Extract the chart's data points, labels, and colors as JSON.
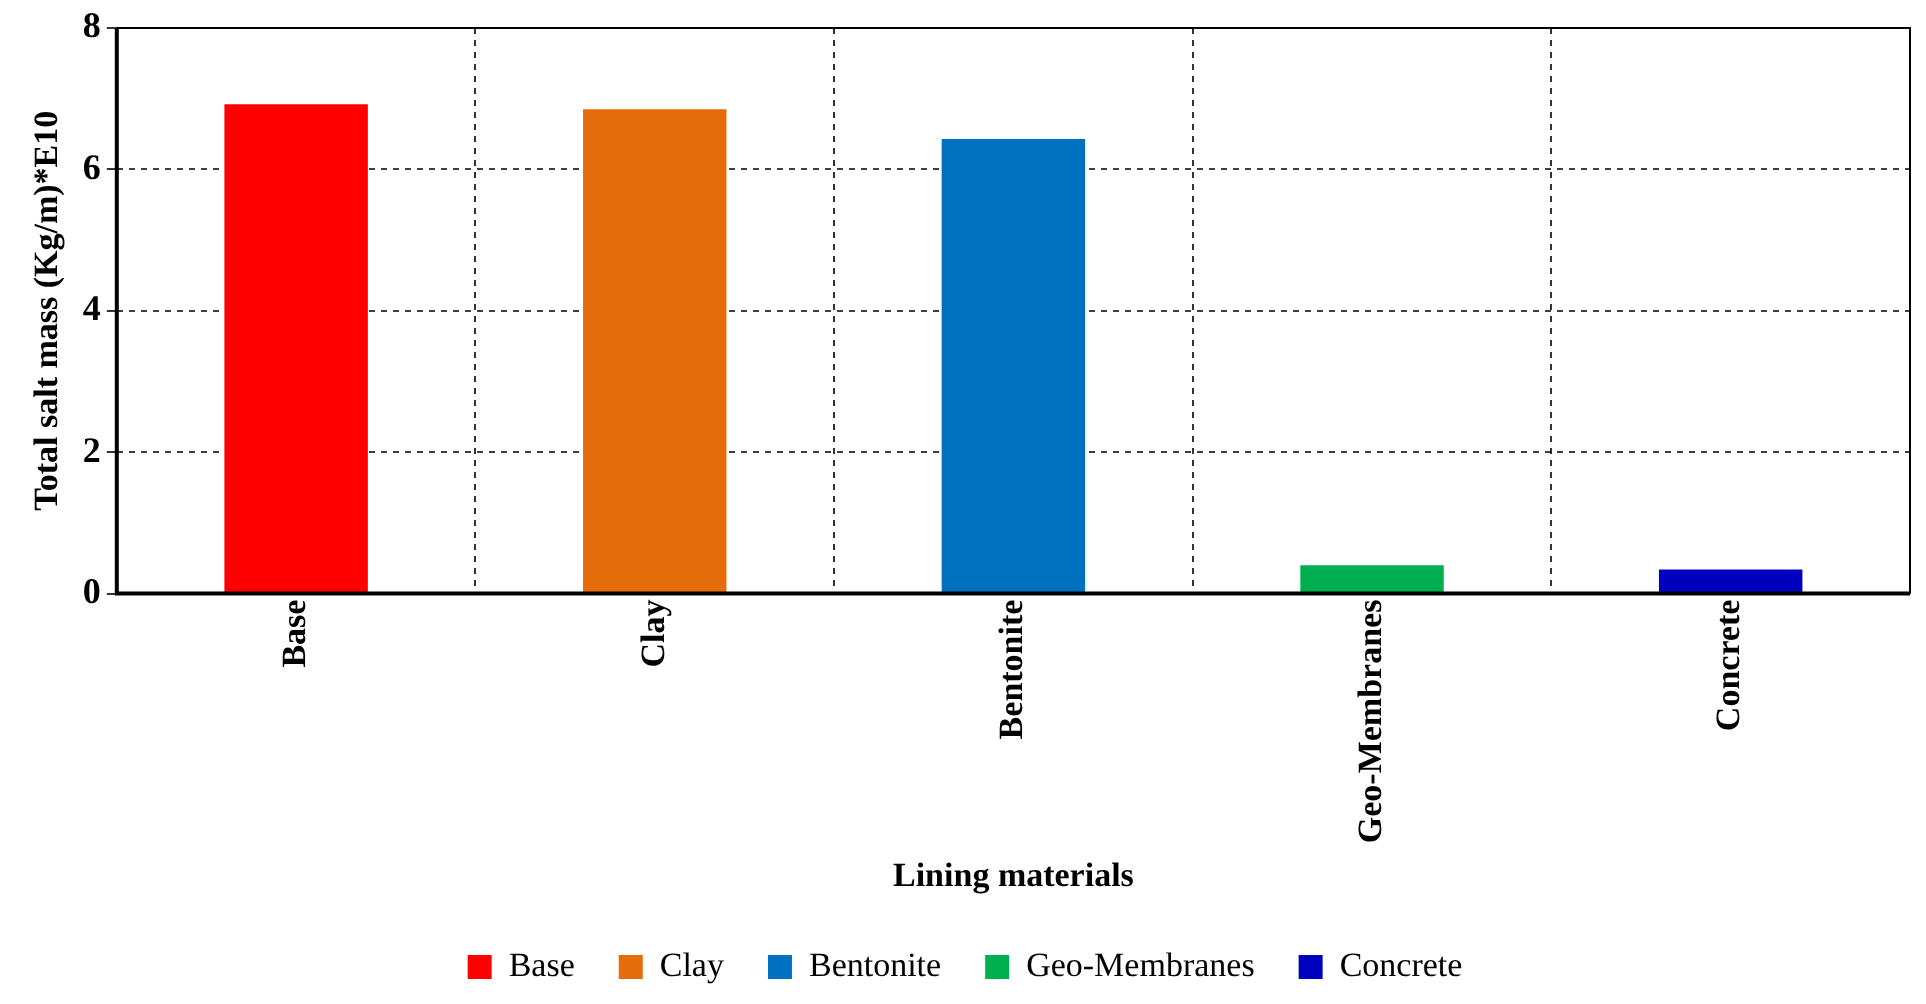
{
  "chart_data": {
    "type": "bar",
    "xlabel": "Lining materials",
    "ylabel": "Total salt mass (Kg/m)*E10",
    "categories": [
      "Base",
      "Clay",
      "Bentonite",
      "Geo-Membranes",
      "Concrete"
    ],
    "series": [
      {
        "name": "Base",
        "color": "#ff0000",
        "values": [
          6.92,
          null,
          null,
          null,
          null
        ]
      },
      {
        "name": "Clay",
        "color": "#e46c0a",
        "values": [
          null,
          6.85,
          null,
          null,
          null
        ]
      },
      {
        "name": "Bentonite",
        "color": "#0070c0",
        "values": [
          null,
          null,
          6.43,
          null,
          null
        ]
      },
      {
        "name": "Geo-Membranes",
        "color": "#00b050",
        "values": [
          null,
          null,
          null,
          0.4,
          null
        ]
      },
      {
        "name": "Concrete",
        "color": "#0000c0",
        "values": [
          null,
          null,
          null,
          null,
          0.34
        ]
      }
    ],
    "ylim": [
      0,
      8
    ],
    "yticks": [
      0,
      2,
      4,
      6,
      8
    ],
    "grid": true,
    "legend": "bottom"
  }
}
